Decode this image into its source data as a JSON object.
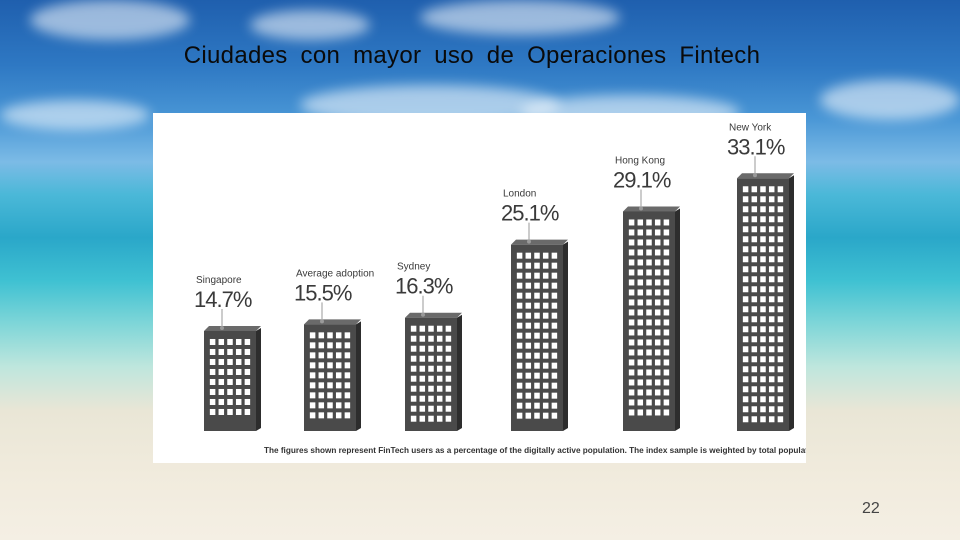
{
  "slide": {
    "title": "Ciudades  con  mayor  uso  de  Operaciones  Fintech",
    "page_number": "22"
  },
  "chart_data": {
    "type": "bar",
    "categories": [
      "Singapore",
      "Average adoption",
      "Sydney",
      "London",
      "Hong Kong",
      "New York"
    ],
    "values": [
      14.7,
      15.5,
      16.3,
      25.1,
      29.1,
      33.1
    ],
    "value_labels": [
      "14.7%",
      "15.5%",
      "16.3%",
      "25.1%",
      "29.1%",
      "33.1%"
    ],
    "unit": "%",
    "footnote": "The figures shown represent FinTech users as a percentage of the digitally active population. The index sample is weighted by total population.",
    "xlabel": "",
    "ylabel": "",
    "bar_style": "buildings",
    "colors": {
      "building_front": "#4a4a4a",
      "building_side": "#2d2d2d",
      "building_top": "#6a6a6a",
      "window": "#ffffff",
      "label": "#3a3a3a"
    }
  }
}
